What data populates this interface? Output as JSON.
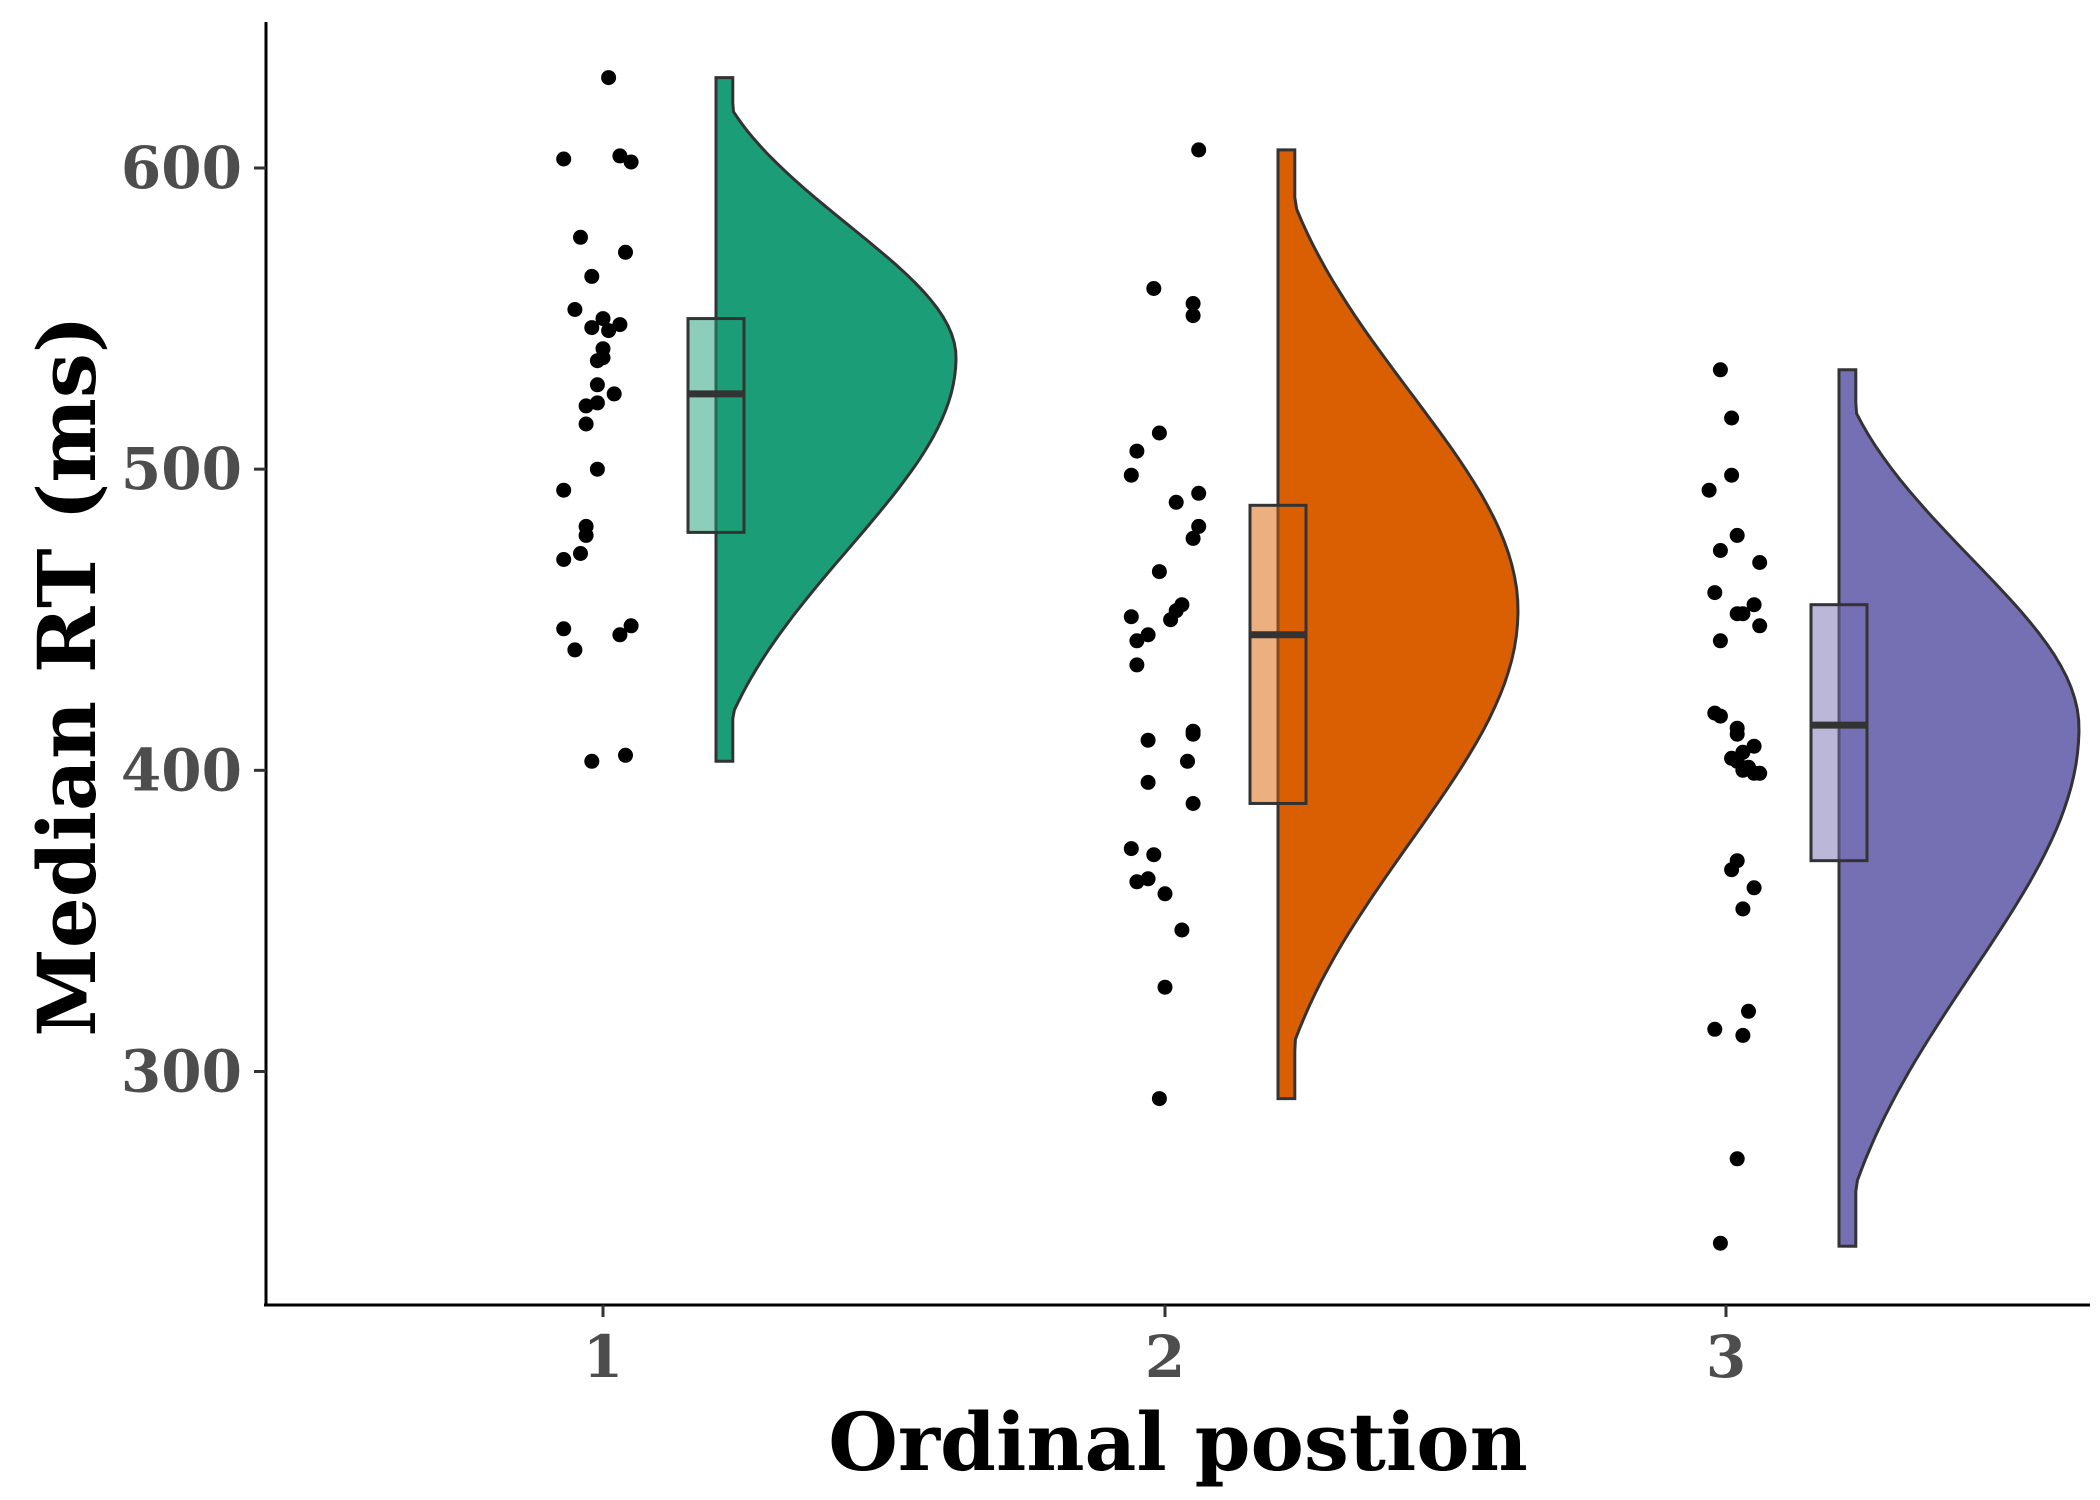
{
  "chart_data": {
    "type": "raincloud",
    "xlabel": "Ordinal postion",
    "ylabel": "Median RT (ms)",
    "categories": [
      "1",
      "2",
      "3"
    ],
    "y_ticks": [
      300,
      400,
      500,
      600
    ],
    "ylim": [
      224,
      650
    ],
    "grid": false,
    "legend": "none",
    "colors": [
      "#1b9e77",
      "#d95f02",
      "#7570b3"
    ],
    "series": [
      {
        "category": "1",
        "color": "#1b9e77",
        "box": {
          "q1": 479,
          "median": 525,
          "q3": 550
        },
        "violin_range": [
          403,
          630
        ],
        "violin_peak": 537,
        "points": [
          {
            "jitter": 0.01,
            "y": 630
          },
          {
            "jitter": -0.07,
            "y": 603
          },
          {
            "jitter": 0.03,
            "y": 604
          },
          {
            "jitter": 0.05,
            "y": 602
          },
          {
            "jitter": -0.04,
            "y": 577
          },
          {
            "jitter": 0.04,
            "y": 572
          },
          {
            "jitter": -0.02,
            "y": 564
          },
          {
            "jitter": -0.05,
            "y": 553
          },
          {
            "jitter": -0.02,
            "y": 547
          },
          {
            "jitter": 0.0,
            "y": 550
          },
          {
            "jitter": 0.03,
            "y": 548
          },
          {
            "jitter": 0.01,
            "y": 546
          },
          {
            "jitter": 0.0,
            "y": 540
          },
          {
            "jitter": 0.0,
            "y": 537
          },
          {
            "jitter": -0.01,
            "y": 536
          },
          {
            "jitter": -0.01,
            "y": 528
          },
          {
            "jitter": 0.02,
            "y": 525
          },
          {
            "jitter": -0.01,
            "y": 522
          },
          {
            "jitter": -0.03,
            "y": 521
          },
          {
            "jitter": -0.03,
            "y": 515
          },
          {
            "jitter": -0.01,
            "y": 500
          },
          {
            "jitter": -0.07,
            "y": 493
          },
          {
            "jitter": -0.03,
            "y": 481
          },
          {
            "jitter": -0.03,
            "y": 478
          },
          {
            "jitter": -0.04,
            "y": 472
          },
          {
            "jitter": -0.07,
            "y": 470
          },
          {
            "jitter": 0.05,
            "y": 448
          },
          {
            "jitter": -0.07,
            "y": 447
          },
          {
            "jitter": 0.03,
            "y": 445
          },
          {
            "jitter": -0.05,
            "y": 440
          },
          {
            "jitter": -0.02,
            "y": 403
          },
          {
            "jitter": 0.04,
            "y": 405
          }
        ]
      },
      {
        "category": "2",
        "color": "#d95f02",
        "box": {
          "q1": 389,
          "median": 445,
          "q3": 488
        },
        "violin_range": [
          291,
          606
        ],
        "violin_peak": 453,
        "points": [
          {
            "jitter": 0.06,
            "y": 606
          },
          {
            "jitter": -0.02,
            "y": 560
          },
          {
            "jitter": 0.05,
            "y": 555
          },
          {
            "jitter": 0.05,
            "y": 551
          },
          {
            "jitter": -0.01,
            "y": 512
          },
          {
            "jitter": -0.05,
            "y": 506
          },
          {
            "jitter": -0.06,
            "y": 498
          },
          {
            "jitter": 0.06,
            "y": 492
          },
          {
            "jitter": 0.02,
            "y": 489
          },
          {
            "jitter": 0.06,
            "y": 481
          },
          {
            "jitter": 0.05,
            "y": 477
          },
          {
            "jitter": -0.01,
            "y": 466
          },
          {
            "jitter": 0.03,
            "y": 455
          },
          {
            "jitter": 0.02,
            "y": 453
          },
          {
            "jitter": -0.06,
            "y": 451
          },
          {
            "jitter": 0.01,
            "y": 450
          },
          {
            "jitter": -0.03,
            "y": 445
          },
          {
            "jitter": -0.05,
            "y": 443
          },
          {
            "jitter": -0.05,
            "y": 435
          },
          {
            "jitter": 0.05,
            "y": 413
          },
          {
            "jitter": 0.05,
            "y": 412
          },
          {
            "jitter": -0.03,
            "y": 410
          },
          {
            "jitter": 0.04,
            "y": 403
          },
          {
            "jitter": -0.03,
            "y": 396
          },
          {
            "jitter": 0.05,
            "y": 389
          },
          {
            "jitter": -0.06,
            "y": 374
          },
          {
            "jitter": -0.02,
            "y": 372
          },
          {
            "jitter": -0.05,
            "y": 363
          },
          {
            "jitter": -0.03,
            "y": 364
          },
          {
            "jitter": 0.0,
            "y": 359
          },
          {
            "jitter": 0.03,
            "y": 347
          },
          {
            "jitter": 0.0,
            "y": 328
          },
          {
            "jitter": -0.01,
            "y": 291
          }
        ]
      },
      {
        "category": "3",
        "color": "#7570b3",
        "box": {
          "q1": 370,
          "median": 415,
          "q3": 455
        },
        "violin_range": [
          242,
          533
        ],
        "violin_peak": 414,
        "points": [
          {
            "jitter": -0.01,
            "y": 533
          },
          {
            "jitter": 0.01,
            "y": 517
          },
          {
            "jitter": 0.01,
            "y": 498
          },
          {
            "jitter": -0.03,
            "y": 493
          },
          {
            "jitter": 0.02,
            "y": 478
          },
          {
            "jitter": -0.01,
            "y": 473
          },
          {
            "jitter": 0.06,
            "y": 469
          },
          {
            "jitter": -0.02,
            "y": 459
          },
          {
            "jitter": 0.05,
            "y": 455
          },
          {
            "jitter": 0.03,
            "y": 452
          },
          {
            "jitter": 0.02,
            "y": 452
          },
          {
            "jitter": 0.06,
            "y": 448
          },
          {
            "jitter": -0.01,
            "y": 443
          },
          {
            "jitter": -0.02,
            "y": 419
          },
          {
            "jitter": -0.01,
            "y": 418
          },
          {
            "jitter": 0.02,
            "y": 414
          },
          {
            "jitter": 0.02,
            "y": 412
          },
          {
            "jitter": 0.05,
            "y": 408
          },
          {
            "jitter": 0.03,
            "y": 406
          },
          {
            "jitter": 0.01,
            "y": 404
          },
          {
            "jitter": 0.02,
            "y": 403
          },
          {
            "jitter": 0.03,
            "y": 400
          },
          {
            "jitter": 0.05,
            "y": 399
          },
          {
            "jitter": 0.06,
            "y": 399
          },
          {
            "jitter": 0.04,
            "y": 401
          },
          {
            "jitter": 0.02,
            "y": 370
          },
          {
            "jitter": 0.01,
            "y": 367
          },
          {
            "jitter": 0.05,
            "y": 361
          },
          {
            "jitter": 0.03,
            "y": 354
          },
          {
            "jitter": 0.04,
            "y": 320
          },
          {
            "jitter": -0.02,
            "y": 314
          },
          {
            "jitter": 0.03,
            "y": 312
          },
          {
            "jitter": 0.02,
            "y": 271
          },
          {
            "jitter": -0.01,
            "y": 243
          }
        ]
      }
    ]
  }
}
